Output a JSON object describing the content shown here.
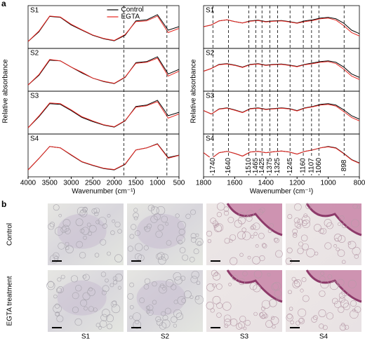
{
  "panel_labels": [
    "a",
    "b"
  ],
  "chart_data": [
    {
      "type": "line",
      "xlabel": "Wavenumber (cm⁻¹)",
      "ylabel": "Relative absorbance",
      "xlim": [
        4000,
        500
      ],
      "xticks": [
        4000,
        3500,
        3000,
        2500,
        2000,
        1500,
        1000,
        500
      ],
      "ylim": [
        0,
        1
      ],
      "panels": [
        "S1",
        "S2",
        "S3",
        "S4"
      ],
      "legend": "upper center",
      "x": [
        4000,
        3750,
        3500,
        3250,
        3000,
        2750,
        2500,
        2250,
        2000,
        1750,
        1500,
        1250,
        1000,
        750,
        500
      ],
      "series": [
        {
          "name": "Control",
          "color": "#000000",
          "values": [
            [
              0.12,
              0.4,
              0.85,
              0.82,
              0.6,
              0.45,
              0.3,
              0.2,
              0.14,
              0.3,
              0.72,
              0.75,
              0.9,
              0.45,
              0.55
            ],
            [
              0.1,
              0.38,
              0.82,
              0.8,
              0.62,
              0.45,
              0.3,
              0.2,
              0.14,
              0.32,
              0.75,
              0.78,
              0.92,
              0.42,
              0.55
            ],
            [
              0.1,
              0.42,
              0.8,
              0.78,
              0.6,
              0.4,
              0.28,
              0.18,
              0.12,
              0.3,
              0.72,
              0.76,
              0.9,
              0.45,
              0.55
            ],
            [
              0.12,
              0.45,
              0.8,
              0.76,
              0.55,
              0.35,
              0.25,
              0.16,
              0.12,
              0.28,
              0.7,
              0.76,
              0.88,
              0.48,
              0.55
            ]
          ]
        },
        {
          "name": "EGTA",
          "color": "#e8251f",
          "values": [
            [
              0.12,
              0.42,
              0.86,
              0.83,
              0.62,
              0.46,
              0.31,
              0.21,
              0.15,
              0.32,
              0.7,
              0.72,
              0.86,
              0.38,
              0.5
            ],
            [
              0.1,
              0.4,
              0.84,
              0.8,
              0.62,
              0.47,
              0.3,
              0.21,
              0.15,
              0.33,
              0.73,
              0.76,
              0.88,
              0.36,
              0.5
            ],
            [
              0.1,
              0.44,
              0.82,
              0.8,
              0.62,
              0.42,
              0.3,
              0.19,
              0.13,
              0.31,
              0.7,
              0.74,
              0.86,
              0.38,
              0.5
            ],
            [
              0.12,
              0.45,
              0.8,
              0.76,
              0.56,
              0.36,
              0.26,
              0.17,
              0.13,
              0.29,
              0.7,
              0.76,
              0.87,
              0.46,
              0.54
            ]
          ]
        }
      ],
      "vlines": [
        1780,
        780
      ]
    },
    {
      "type": "line",
      "xlabel": "Wavenumber (cm⁻¹)",
      "ylabel": "Relative absorbance",
      "xlim": [
        1800,
        800
      ],
      "xticks": [
        1800,
        1600,
        1400,
        1200,
        1000,
        800
      ],
      "ylim": [
        0,
        1
      ],
      "panels": [
        "S1",
        "S2",
        "S3",
        "S4"
      ],
      "x": [
        1800,
        1750,
        1700,
        1650,
        1600,
        1550,
        1500,
        1450,
        1400,
        1350,
        1300,
        1250,
        1200,
        1150,
        1100,
        1050,
        1000,
        950,
        900,
        850,
        800
      ],
      "series": [
        {
          "color": "#000000",
          "values": [
            [
              0.55,
              0.6,
              0.72,
              0.75,
              0.7,
              0.66,
              0.72,
              0.74,
              0.7,
              0.72,
              0.73,
              0.7,
              0.66,
              0.72,
              0.75,
              0.8,
              0.82,
              0.78,
              0.65,
              0.45,
              0.35
            ],
            [
              0.5,
              0.58,
              0.7,
              0.72,
              0.68,
              0.62,
              0.7,
              0.72,
              0.68,
              0.7,
              0.71,
              0.68,
              0.64,
              0.7,
              0.74,
              0.78,
              0.8,
              0.76,
              0.62,
              0.42,
              0.32
            ],
            [
              0.6,
              0.5,
              0.65,
              0.68,
              0.62,
              0.55,
              0.66,
              0.68,
              0.64,
              0.66,
              0.68,
              0.66,
              0.6,
              0.68,
              0.72,
              0.78,
              0.8,
              0.76,
              0.62,
              0.45,
              0.35
            ],
            [
              0.62,
              0.45,
              0.62,
              0.66,
              0.6,
              0.52,
              0.64,
              0.66,
              0.62,
              0.65,
              0.67,
              0.64,
              0.58,
              0.66,
              0.7,
              0.76,
              0.8,
              0.76,
              0.6,
              0.42,
              0.32
            ]
          ]
        },
        {
          "color": "#e8251f",
          "values": [
            [
              0.55,
              0.6,
              0.72,
              0.75,
              0.7,
              0.66,
              0.71,
              0.73,
              0.69,
              0.71,
              0.72,
              0.69,
              0.65,
              0.7,
              0.73,
              0.78,
              0.8,
              0.74,
              0.58,
              0.38,
              0.28
            ],
            [
              0.5,
              0.58,
              0.69,
              0.71,
              0.67,
              0.61,
              0.69,
              0.71,
              0.67,
              0.69,
              0.7,
              0.67,
              0.63,
              0.69,
              0.72,
              0.76,
              0.78,
              0.72,
              0.56,
              0.36,
              0.26
            ],
            [
              0.6,
              0.5,
              0.64,
              0.67,
              0.61,
              0.54,
              0.65,
              0.67,
              0.63,
              0.65,
              0.67,
              0.65,
              0.59,
              0.67,
              0.71,
              0.76,
              0.78,
              0.73,
              0.57,
              0.4,
              0.3
            ],
            [
              0.62,
              0.45,
              0.62,
              0.66,
              0.6,
              0.52,
              0.64,
              0.66,
              0.62,
              0.65,
              0.67,
              0.64,
              0.58,
              0.66,
              0.7,
              0.76,
              0.79,
              0.75,
              0.59,
              0.41,
              0.31
            ]
          ]
        }
      ],
      "peaks": [
        1740,
        1640,
        1510,
        1465,
        1425,
        1375,
        1325,
        1245,
        1160,
        1107,
        1060,
        898
      ]
    }
  ],
  "micrographs": {
    "rows": [
      "Control",
      "EGTA treatment"
    ],
    "columns": [
      "S1",
      "S2",
      "S3",
      "S4"
    ]
  }
}
